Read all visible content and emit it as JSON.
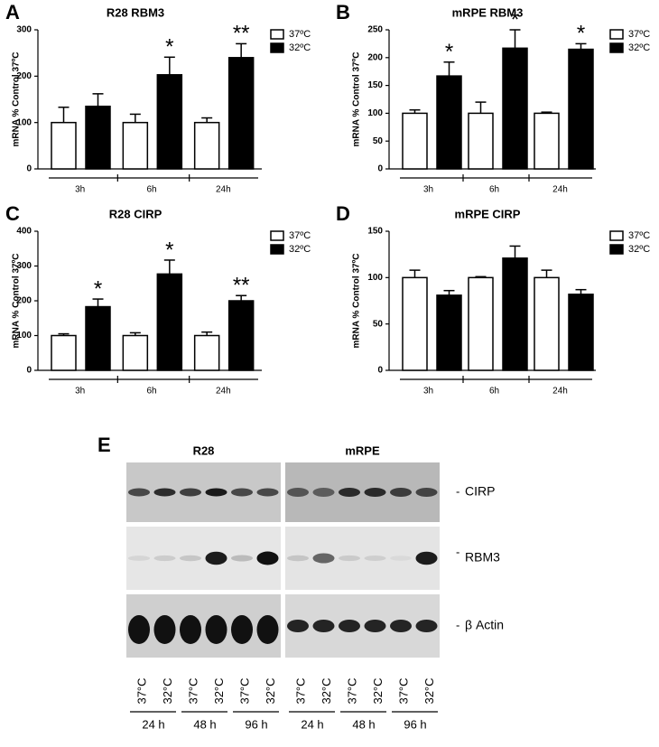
{
  "chart_data": [
    {
      "type": "bar",
      "panel": "A",
      "title": "R28 RBM3",
      "y_label": "mRNA % Control 37ºC",
      "categories": [
        "3h",
        "6h",
        "24h"
      ],
      "series": [
        {
          "name": "37ºC",
          "color": "#ffffff",
          "values": [
            100,
            100,
            100
          ],
          "errors": [
            33,
            18,
            10
          ]
        },
        {
          "name": "32ºC",
          "color": "#000000",
          "values": [
            135,
            203,
            240
          ],
          "errors": [
            27,
            38,
            30
          ],
          "annotations": [
            null,
            "*",
            "**"
          ]
        }
      ],
      "ylim": [
        0,
        300
      ],
      "yticks": [
        0,
        100,
        200,
        300
      ],
      "legend": "upper right"
    },
    {
      "type": "bar",
      "panel": "B",
      "title": "mRPE RBM3",
      "y_label": "mRNA % Control 37ºC",
      "categories": [
        "3h",
        "6h",
        "24h"
      ],
      "series": [
        {
          "name": "37ºC",
          "color": "#ffffff",
          "values": [
            100,
            100,
            100
          ],
          "errors": [
            6,
            20,
            2
          ]
        },
        {
          "name": "32ºC",
          "color": "#000000",
          "values": [
            167,
            217,
            215
          ],
          "errors": [
            25,
            33,
            10
          ],
          "annotations": [
            "*",
            "*",
            "*"
          ]
        }
      ],
      "ylim": [
        0,
        250
      ],
      "yticks": [
        0,
        50,
        100,
        150,
        200,
        250
      ],
      "legend": "upper right"
    },
    {
      "type": "bar",
      "panel": "C",
      "title": "R28 CIRP",
      "y_label": "mRNA % Control 37ºC",
      "categories": [
        "3h",
        "6h",
        "24h"
      ],
      "series": [
        {
          "name": "37ºC",
          "color": "#ffffff",
          "values": [
            100,
            100,
            100
          ],
          "errors": [
            5,
            8,
            10
          ]
        },
        {
          "name": "32ºC",
          "color": "#000000",
          "values": [
            183,
            277,
            200
          ],
          "errors": [
            22,
            40,
            15
          ],
          "annotations": [
            "*",
            "*",
            "**"
          ]
        }
      ],
      "ylim": [
        0,
        400
      ],
      "yticks": [
        0,
        100,
        200,
        300,
        400
      ],
      "legend": "upper right"
    },
    {
      "type": "bar",
      "panel": "D",
      "title": "mRPE CIRP",
      "y_label": "mRNA % Control 37ºC",
      "categories": [
        "3h",
        "6h",
        "24h"
      ],
      "series": [
        {
          "name": "37ºC",
          "color": "#ffffff",
          "values": [
            100,
            100,
            100
          ],
          "errors": [
            8,
            1,
            8
          ]
        },
        {
          "name": "32ºC",
          "color": "#000000",
          "values": [
            81,
            121,
            82
          ],
          "errors": [
            5,
            13,
            5
          ]
        }
      ],
      "ylim": [
        0,
        150
      ],
      "yticks": [
        0,
        50,
        100,
        150
      ],
      "legend": "upper right"
    }
  ],
  "blot": {
    "panel": "E",
    "groups": [
      "R28",
      "mRPE"
    ],
    "rows": [
      "CIRP",
      "RBM3",
      "β Actin"
    ],
    "lanes": [
      "37°C",
      "32°C",
      "37°C",
      "32°C",
      "37°C",
      "32°C",
      "37°C",
      "32°C",
      "37°C",
      "32°C",
      "37°C",
      "32°C"
    ],
    "times": [
      "24 h",
      "48 h",
      "96 h",
      "24 h",
      "48 h",
      "96 h"
    ]
  }
}
